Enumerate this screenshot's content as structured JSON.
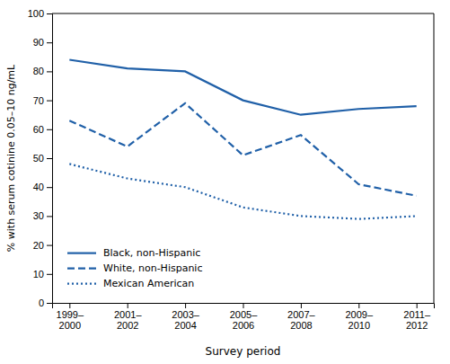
{
  "chart_data": {
    "type": "line",
    "categories": [
      "1999–\n2000",
      "2001–\n2002",
      "2003–\n2004",
      "2005–\n2006",
      "2007–\n2008",
      "2009–\n2010",
      "2011–\n2012"
    ],
    "series": [
      {
        "name": "Black, non-Hispanic",
        "color": "#2060a8",
        "line_style": "solid",
        "values": [
          84,
          81,
          80,
          70,
          65,
          67,
          68
        ]
      },
      {
        "name": "White, non-Hispanic",
        "color": "#2060a8",
        "line_style": "dashed",
        "values": [
          63,
          54,
          69,
          51,
          58,
          41,
          37
        ]
      },
      {
        "name": "Mexican American",
        "color": "#2060a8",
        "line_style": "dotted",
        "values": [
          48,
          43,
          40,
          33,
          30,
          29,
          30
        ]
      }
    ],
    "xlabel": "Survey period",
    "ylabel": "% with serum cotinine 0.05–10 ng/mL",
    "ylim": [
      0,
      100
    ],
    "yticks": [
      0,
      10,
      20,
      30,
      40,
      50,
      60,
      70,
      80,
      90,
      100
    ],
    "grid": false,
    "legend": "lower left"
  }
}
